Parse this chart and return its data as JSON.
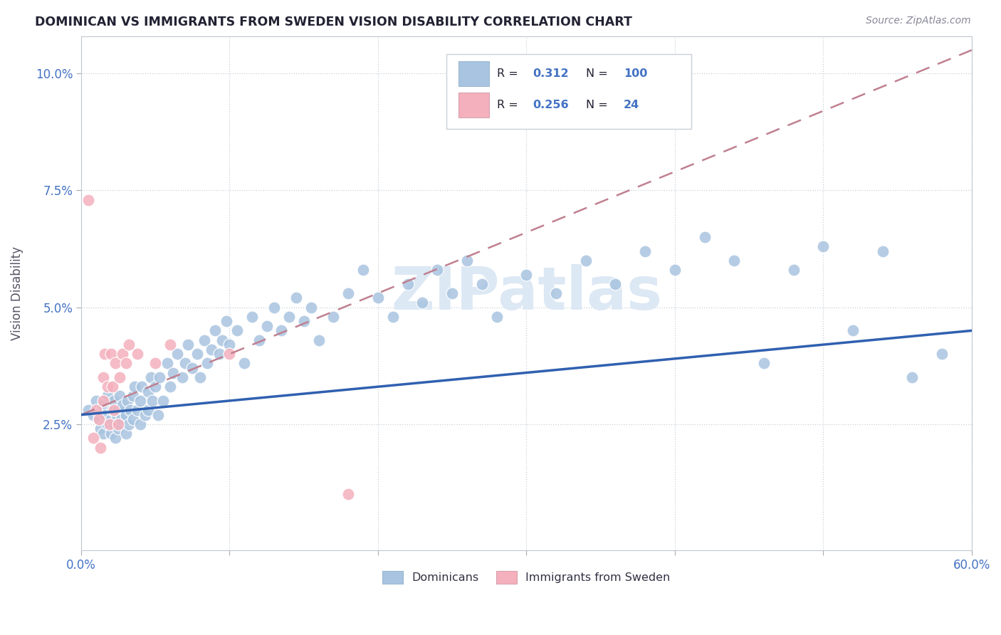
{
  "title": "DOMINICAN VS IMMIGRANTS FROM SWEDEN VISION DISABILITY CORRELATION CHART",
  "source": "Source: ZipAtlas.com",
  "ylabel": "Vision Disability",
  "xlim": [
    0.0,
    0.6
  ],
  "ylim": [
    -0.002,
    0.108
  ],
  "xtick_pos": [
    0.0,
    0.1,
    0.2,
    0.3,
    0.4,
    0.5,
    0.6
  ],
  "xticklabels": [
    "0.0%",
    "",
    "",
    "",
    "",
    "",
    "60.0%"
  ],
  "ytick_pos": [
    0.025,
    0.05,
    0.075,
    0.1
  ],
  "yticklabels": [
    "2.5%",
    "5.0%",
    "7.5%",
    "10.0%"
  ],
  "legend1_R": "0.312",
  "legend1_N": "100",
  "legend2_R": "0.256",
  "legend2_N": "24",
  "blue_color": "#a8c4e0",
  "pink_color": "#f4b0bc",
  "trend_blue_color": "#3060b0",
  "trend_pink_color": "#c08090",
  "watermark_color": "#dce8f4",
  "dom_x": [
    0.005,
    0.008,
    0.01,
    0.012,
    0.013,
    0.015,
    0.015,
    0.016,
    0.018,
    0.018,
    0.02,
    0.02,
    0.021,
    0.022,
    0.022,
    0.023,
    0.024,
    0.025,
    0.025,
    0.026,
    0.027,
    0.028,
    0.03,
    0.03,
    0.031,
    0.032,
    0.033,
    0.035,
    0.035,
    0.036,
    0.038,
    0.04,
    0.04,
    0.041,
    0.043,
    0.045,
    0.045,
    0.047,
    0.048,
    0.05,
    0.052,
    0.053,
    0.055,
    0.058,
    0.06,
    0.062,
    0.065,
    0.068,
    0.07,
    0.072,
    0.075,
    0.078,
    0.08,
    0.083,
    0.085,
    0.088,
    0.09,
    0.093,
    0.095,
    0.098,
    0.1,
    0.105,
    0.11,
    0.115,
    0.12,
    0.125,
    0.13,
    0.135,
    0.14,
    0.145,
    0.15,
    0.155,
    0.16,
    0.17,
    0.18,
    0.19,
    0.2,
    0.21,
    0.22,
    0.23,
    0.24,
    0.25,
    0.26,
    0.27,
    0.28,
    0.3,
    0.32,
    0.34,
    0.36,
    0.38,
    0.4,
    0.42,
    0.44,
    0.46,
    0.48,
    0.5,
    0.52,
    0.54,
    0.56,
    0.58
  ],
  "dom_y": [
    0.028,
    0.027,
    0.03,
    0.026,
    0.024,
    0.029,
    0.023,
    0.027,
    0.031,
    0.025,
    0.026,
    0.023,
    0.028,
    0.025,
    0.03,
    0.022,
    0.027,
    0.028,
    0.024,
    0.031,
    0.026,
    0.029,
    0.027,
    0.023,
    0.03,
    0.025,
    0.028,
    0.031,
    0.026,
    0.033,
    0.028,
    0.03,
    0.025,
    0.033,
    0.027,
    0.032,
    0.028,
    0.035,
    0.03,
    0.033,
    0.027,
    0.035,
    0.03,
    0.038,
    0.033,
    0.036,
    0.04,
    0.035,
    0.038,
    0.042,
    0.037,
    0.04,
    0.035,
    0.043,
    0.038,
    0.041,
    0.045,
    0.04,
    0.043,
    0.047,
    0.042,
    0.045,
    0.038,
    0.048,
    0.043,
    0.046,
    0.05,
    0.045,
    0.048,
    0.052,
    0.047,
    0.05,
    0.043,
    0.048,
    0.053,
    0.058,
    0.052,
    0.048,
    0.055,
    0.051,
    0.058,
    0.053,
    0.06,
    0.055,
    0.048,
    0.057,
    0.053,
    0.06,
    0.055,
    0.062,
    0.058,
    0.065,
    0.06,
    0.038,
    0.058,
    0.063,
    0.045,
    0.062,
    0.035,
    0.04
  ],
  "swe_x": [
    0.005,
    0.008,
    0.01,
    0.012,
    0.013,
    0.015,
    0.015,
    0.016,
    0.018,
    0.019,
    0.02,
    0.021,
    0.022,
    0.023,
    0.025,
    0.026,
    0.028,
    0.03,
    0.032,
    0.038,
    0.05,
    0.06,
    0.1,
    0.18
  ],
  "swe_y": [
    0.073,
    0.022,
    0.028,
    0.026,
    0.02,
    0.035,
    0.03,
    0.04,
    0.033,
    0.025,
    0.04,
    0.033,
    0.028,
    0.038,
    0.025,
    0.035,
    0.04,
    0.038,
    0.042,
    0.04,
    0.038,
    0.042,
    0.04,
    0.01
  ],
  "dom_trend_x": [
    0.0,
    0.6
  ],
  "dom_trend_y_start": 0.027,
  "dom_trend_y_end": 0.045,
  "swe_trend_x": [
    0.0,
    0.6
  ],
  "swe_trend_y_start": 0.027,
  "swe_trend_y_end": 0.105
}
